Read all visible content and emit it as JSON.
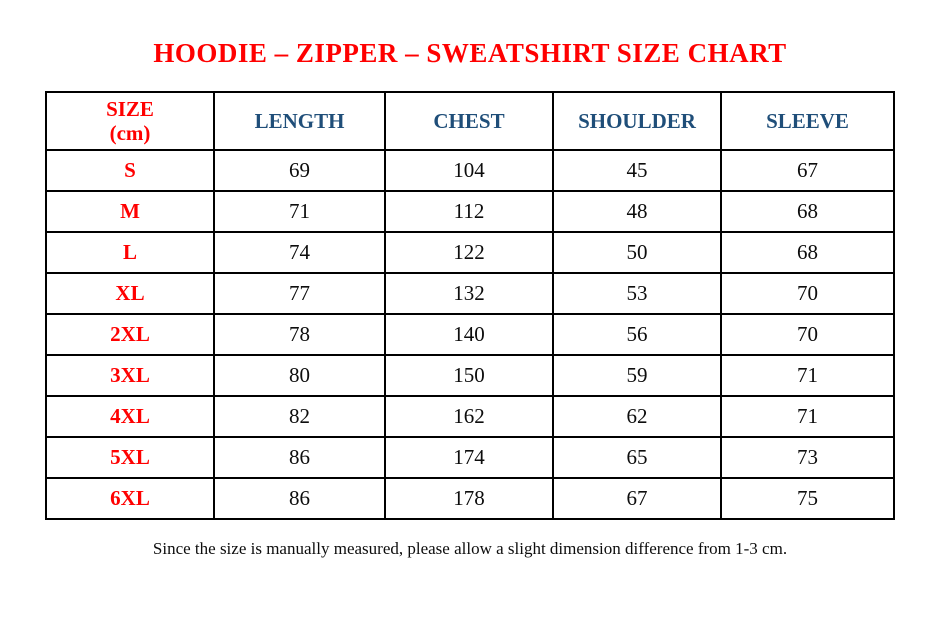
{
  "page": {
    "stray_dot": "."
  },
  "title": "HOODIE – ZIPPER – SWEATSHIRT SIZE CHART",
  "colors": {
    "title_red": "#ff0000",
    "size_red": "#ff0000",
    "header_blue": "#1f4e79",
    "border_black": "#000000",
    "text_black": "#0d0d0d"
  },
  "table": {
    "size_header": {
      "line1": "SIZE",
      "line2": "(cm)"
    },
    "columns": [
      "LENGTH",
      "CHEST",
      "SHOULDER",
      "SLEEVE"
    ],
    "rows": [
      {
        "size": "S",
        "length": "69",
        "chest": "104",
        "shoulder": "45",
        "sleeve": "67"
      },
      {
        "size": "M",
        "length": "71",
        "chest": "112",
        "shoulder": "48",
        "sleeve": "68"
      },
      {
        "size": "L",
        "length": "74",
        "chest": "122",
        "shoulder": "50",
        "sleeve": "68"
      },
      {
        "size": "XL",
        "length": "77",
        "chest": "132",
        "shoulder": "53",
        "sleeve": "70"
      },
      {
        "size": "2XL",
        "length": "78",
        "chest": "140",
        "shoulder": "56",
        "sleeve": "70"
      },
      {
        "size": "3XL",
        "length": "80",
        "chest": "150",
        "shoulder": "59",
        "sleeve": "71"
      },
      {
        "size": "4XL",
        "length": "82",
        "chest": "162",
        "shoulder": "62",
        "sleeve": "71"
      },
      {
        "size": "5XL",
        "length": "86",
        "chest": "174",
        "shoulder": "65",
        "sleeve": "73"
      },
      {
        "size": "6XL",
        "length": "86",
        "chest": "178",
        "shoulder": "67",
        "sleeve": "75"
      }
    ]
  },
  "footer": {
    "note": "Since the size is manually measured, please allow a slight dimension difference from 1-3 cm."
  }
}
